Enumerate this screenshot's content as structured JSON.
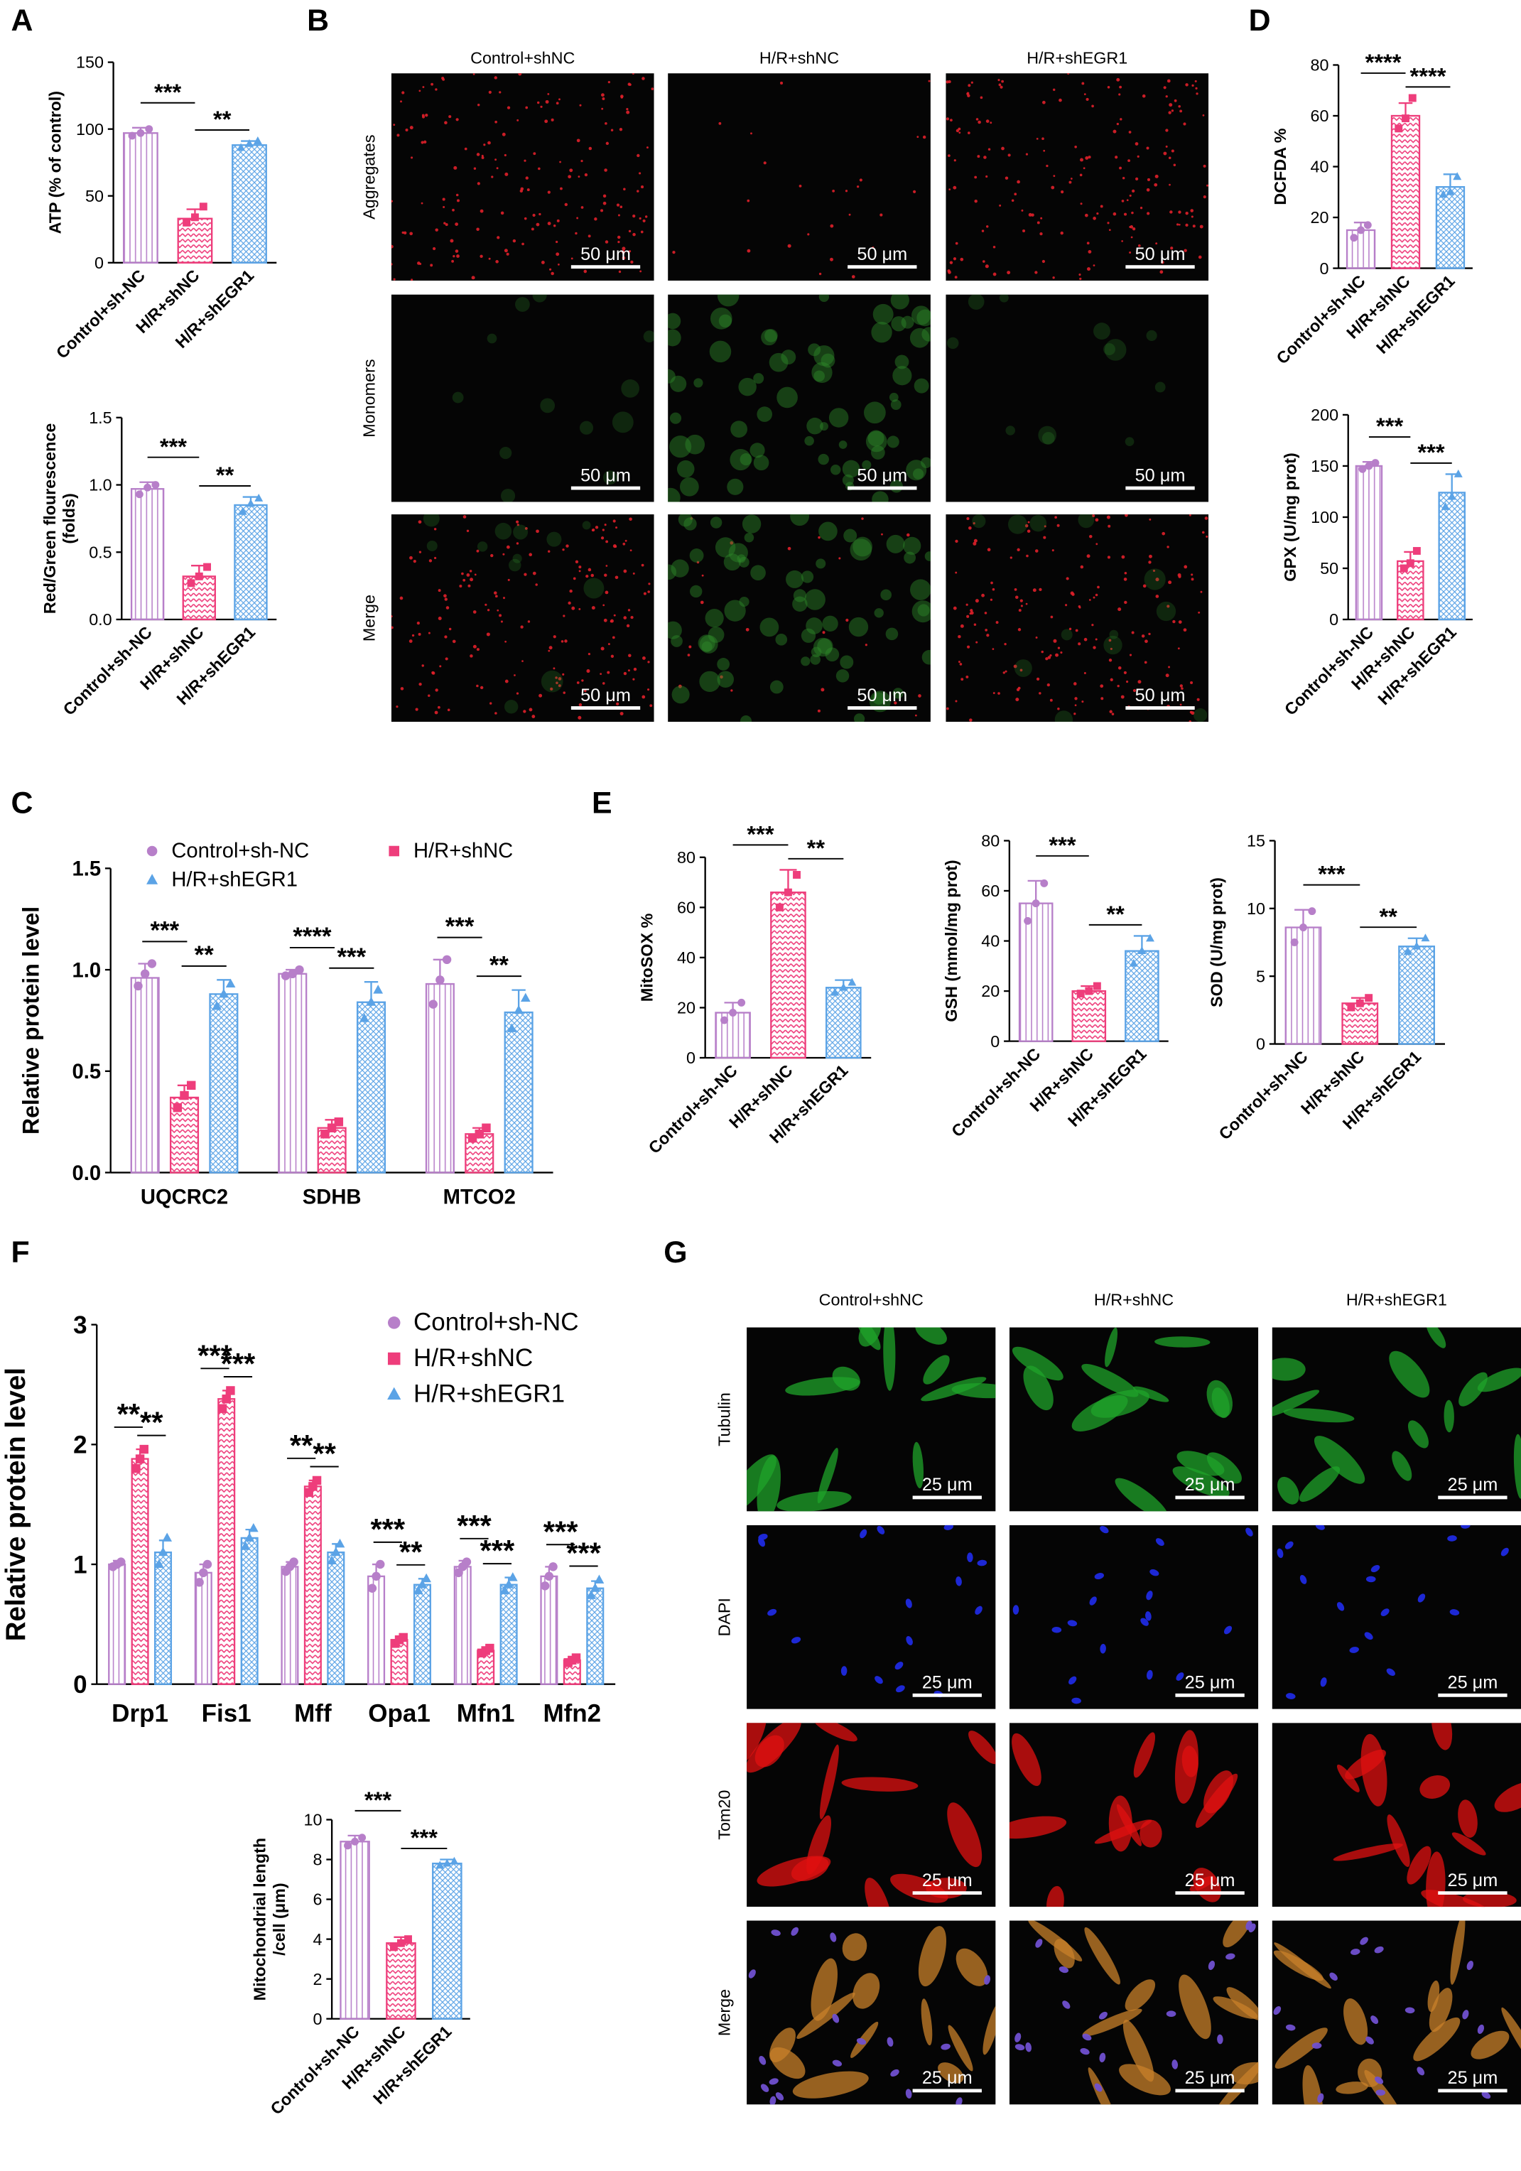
{
  "panel_labels": [
    "A",
    "B",
    "C",
    "D",
    "E",
    "F",
    "G"
  ],
  "chart_data": [
    {
      "type": "bar",
      "y_label": "ATP (% of control)",
      "categories": [
        "Control+sh-NC",
        "H/R+shNC",
        "H/R+shEGR1"
      ],
      "values": [
        97,
        33,
        88
      ],
      "errors": [
        4,
        7,
        3
      ],
      "points": [
        [
          95,
          97,
          100
        ],
        [
          30,
          34,
          42
        ],
        [
          86,
          89,
          91
        ]
      ],
      "colors": [
        "#b77fc9",
        "#ee3d7b",
        "#5ba3e6"
      ],
      "ylim": [
        0,
        150
      ],
      "yticks": [
        0,
        50,
        100,
        150
      ],
      "significance": [
        "***",
        "**"
      ]
    },
    {
      "type": "bar",
      "y_label": [
        "Red/Green flourescence",
        "(folds)"
      ],
      "categories": [
        "Control+sh-NC",
        "H/R+shNC",
        "H/R+shEGR1"
      ],
      "values": [
        0.97,
        0.32,
        0.85
      ],
      "errors": [
        0.05,
        0.08,
        0.06
      ],
      "points": [
        [
          0.93,
          0.98,
          1.0
        ],
        [
          0.27,
          0.32,
          0.39
        ],
        [
          0.8,
          0.86,
          0.9
        ]
      ],
      "colors": [
        "#b77fc9",
        "#ee3d7b",
        "#5ba3e6"
      ],
      "ylim": [
        0,
        1.5
      ],
      "yticks": [
        {
          "value": 0,
          "label": "0.0"
        },
        0.5,
        {
          "value": 1,
          "label": "1.0"
        },
        1.5
      ],
      "significance": [
        "***",
        "**"
      ]
    },
    {
      "type": "bar",
      "y_label": "DCFDA %",
      "categories": [
        "Control+sh-NC",
        "H/R+shNC",
        "H/R+shEGR1"
      ],
      "values": [
        15,
        60,
        32
      ],
      "errors": [
        3,
        5,
        5
      ],
      "points": [
        [
          12,
          15,
          17
        ],
        [
          55,
          59,
          67
        ],
        [
          29,
          30,
          36
        ]
      ],
      "colors": [
        "#b77fc9",
        "#ee3d7b",
        "#5ba3e6"
      ],
      "ylim": [
        0,
        80
      ],
      "yticks": [
        0,
        20,
        40,
        60,
        80
      ],
      "significance": [
        "****",
        "****"
      ]
    },
    {
      "type": "bar",
      "y_label": "GPX (U/mg prot)",
      "categories": [
        "Control+sh-NC",
        "H/R+shNC",
        "H/R+shEGR1"
      ],
      "values": [
        150,
        57,
        124
      ],
      "errors": [
        4,
        9,
        18
      ],
      "points": [
        [
          147,
          150,
          153
        ],
        [
          50,
          55,
          67
        ],
        [
          110,
          120,
          142
        ]
      ],
      "colors": [
        "#b77fc9",
        "#ee3d7b",
        "#5ba3e6"
      ],
      "ylim": [
        0,
        200
      ],
      "yticks": [
        0,
        50,
        100,
        150,
        200
      ],
      "significance": [
        "***",
        "***"
      ]
    },
    {
      "type": "grouped_bar",
      "y_label": "Relative protein level",
      "categories": [
        "UQCRC2",
        "SDHB",
        "MTCO2"
      ],
      "legend": true,
      "series": [
        {
          "name": "Control+sh-NC",
          "color": "#b77fc9",
          "values": [
            0.96,
            0.98,
            0.93
          ],
          "errors": [
            0.07,
            0.02,
            0.12
          ],
          "points": [
            [
              0.92,
              0.98,
              1.03
            ],
            [
              0.97,
              0.98,
              1.0
            ],
            [
              0.83,
              0.95,
              1.05
            ]
          ]
        },
        {
          "name": "H/R+shNC",
          "color": "#ee3d7b",
          "values": [
            0.37,
            0.22,
            0.19
          ],
          "errors": [
            0.06,
            0.04,
            0.03
          ],
          "points": [
            [
              0.32,
              0.38,
              0.43
            ],
            [
              0.19,
              0.22,
              0.25
            ],
            [
              0.17,
              0.19,
              0.22
            ]
          ]
        },
        {
          "name": "H/R+shEGR1",
          "color": "#5ba3e6",
          "values": [
            0.88,
            0.84,
            0.79
          ],
          "errors": [
            0.07,
            0.1,
            0.11
          ],
          "points": [
            [
              0.82,
              0.88,
              0.93
            ],
            [
              0.76,
              0.84,
              0.9
            ],
            [
              0.71,
              0.8,
              0.86
            ]
          ]
        }
      ],
      "ylim": [
        0,
        1.5
      ],
      "yticks": [
        {
          "value": 0,
          "label": "0.0"
        },
        0.5,
        {
          "value": 1,
          "label": "1.0"
        },
        1.5
      ],
      "significance": [
        [
          "***",
          "**"
        ],
        [
          "****",
          "***"
        ],
        [
          "***",
          "**"
        ]
      ]
    },
    {
      "type": "bar",
      "y_label": "MitoSOX %",
      "categories": [
        "Control+sh-NC",
        "H/R+shNC",
        "H/R+shEGR1"
      ],
      "values": [
        18,
        66,
        28
      ],
      "errors": [
        4,
        9,
        3
      ],
      "points": [
        [
          15,
          18,
          22
        ],
        [
          60,
          66,
          73
        ],
        [
          26,
          28,
          30
        ]
      ],
      "colors": [
        "#b77fc9",
        "#ee3d7b",
        "#5ba3e6"
      ],
      "ylim": [
        0,
        80
      ],
      "yticks": [
        0,
        20,
        40,
        60,
        80
      ],
      "significance": [
        "***",
        "**"
      ]
    },
    {
      "type": "bar",
      "y_label": "GSH (mmol/mg prot)",
      "categories": [
        "Control+sh-NC",
        "H/R+shNC",
        "H/R+shEGR1"
      ],
      "values": [
        55,
        20,
        36
      ],
      "errors": [
        9,
        2,
        6
      ],
      "points": [
        [
          48,
          55,
          63
        ],
        [
          19,
          20,
          22
        ],
        [
          31,
          36,
          41
        ]
      ],
      "colors": [
        "#b77fc9",
        "#ee3d7b",
        "#5ba3e6"
      ],
      "ylim": [
        0,
        80
      ],
      "yticks": [
        0,
        20,
        40,
        60,
        80
      ],
      "significance": [
        "***",
        "**"
      ]
    },
    {
      "type": "bar",
      "y_label": "SOD (U/mg prot)",
      "categories": [
        "Control+sh-NC",
        "H/R+shNC",
        "H/R+shEGR1"
      ],
      "values": [
        8.6,
        3.0,
        7.2
      ],
      "errors": [
        1.3,
        0.4,
        0.6
      ],
      "points": [
        [
          7.5,
          8.6,
          9.8
        ],
        [
          2.7,
          3.0,
          3.4
        ],
        [
          6.8,
          7.2,
          7.8
        ]
      ],
      "colors": [
        "#b77fc9",
        "#ee3d7b",
        "#5ba3e6"
      ],
      "ylim": [
        0,
        15
      ],
      "yticks": [
        0,
        5,
        10,
        15
      ],
      "significance": [
        "***",
        "**"
      ]
    },
    {
      "type": "grouped_bar",
      "y_label": "Relative protein level",
      "categories": [
        "Drp1",
        "Fis1",
        "Mff",
        "Opa1",
        "Mfn1",
        "Mfn2"
      ],
      "legend": true,
      "series": [
        {
          "name": "Control+sh-NC",
          "color": "#b77fc9",
          "values": [
            1.0,
            0.93,
            0.98,
            0.9,
            0.98,
            0.9
          ],
          "errors": [
            0.03,
            0.07,
            0.04,
            0.1,
            0.05,
            0.08
          ],
          "points": [
            [
              0.98,
              1.0,
              1.02
            ],
            [
              0.85,
              0.93,
              1.0
            ],
            [
              0.94,
              0.98,
              1.02
            ],
            [
              0.8,
              0.9,
              1.0
            ],
            [
              0.93,
              0.98,
              1.02
            ],
            [
              0.82,
              0.9,
              0.98
            ]
          ]
        },
        {
          "name": "H/R+shNC",
          "color": "#ee3d7b",
          "values": [
            1.88,
            2.38,
            1.65,
            0.37,
            0.28,
            0.2
          ],
          "errors": [
            0.08,
            0.07,
            0.05,
            0.03,
            0.02,
            0.02
          ],
          "points": [
            [
              1.8,
              1.88,
              1.96
            ],
            [
              2.3,
              2.38,
              2.45
            ],
            [
              1.6,
              1.65,
              1.7
            ],
            [
              0.34,
              0.37,
              0.39
            ],
            [
              0.26,
              0.28,
              0.3
            ],
            [
              0.18,
              0.2,
              0.22
            ]
          ]
        },
        {
          "name": "H/R+shEGR1",
          "color": "#5ba3e6",
          "values": [
            1.1,
            1.22,
            1.1,
            0.83,
            0.83,
            0.8
          ],
          "errors": [
            0.1,
            0.07,
            0.07,
            0.05,
            0.06,
            0.06
          ],
          "points": [
            [
              1.0,
              1.1,
              1.22
            ],
            [
              1.15,
              1.22,
              1.3
            ],
            [
              1.03,
              1.1,
              1.17
            ],
            [
              0.78,
              0.83,
              0.88
            ],
            [
              0.78,
              0.83,
              0.89
            ],
            [
              0.74,
              0.8,
              0.87
            ]
          ]
        }
      ],
      "ylim": [
        0,
        3
      ],
      "yticks": [
        0,
        1,
        2,
        3
      ],
      "significance": [
        [
          "**",
          "**"
        ],
        [
          "***",
          "***"
        ],
        [
          "**",
          "**"
        ],
        [
          "***",
          "**"
        ],
        [
          "***",
          "***"
        ],
        [
          "***",
          "***"
        ]
      ]
    },
    {
      "type": "bar",
      "y_label": [
        "Mitochondrial length",
        "/cell (μm)"
      ],
      "categories": [
        "Control+sh-NC",
        "H/R+shNC",
        "H/R+shEGR1"
      ],
      "values": [
        8.9,
        3.8,
        7.8
      ],
      "errors": [
        0.3,
        0.3,
        0.2
      ],
      "points": [
        [
          8.7,
          8.9,
          9.1
        ],
        [
          3.6,
          3.8,
          4.0
        ],
        [
          7.7,
          7.8,
          7.9
        ]
      ],
      "colors": [
        "#b77fc9",
        "#ee3d7b",
        "#5ba3e6"
      ],
      "ylim": [
        0,
        10
      ],
      "yticks": [
        0,
        2,
        4,
        6,
        8,
        10
      ],
      "significance": [
        "***",
        "***"
      ]
    }
  ],
  "micrographs": [
    {
      "columns": [
        "Control+shNC",
        "H/R+shNC",
        "H/R+shEGR1"
      ],
      "rows": [
        "Aggregates",
        "Monomers",
        "Merge"
      ],
      "scale_bar": "50 μm"
    },
    {
      "columns": [
        "Control+shNC",
        "H/R+shNC",
        "H/R+shEGR1"
      ],
      "rows": [
        "Tubulin",
        "DAPI",
        "Tom20",
        "Merge"
      ],
      "scale_bar": "25 μm"
    }
  ]
}
